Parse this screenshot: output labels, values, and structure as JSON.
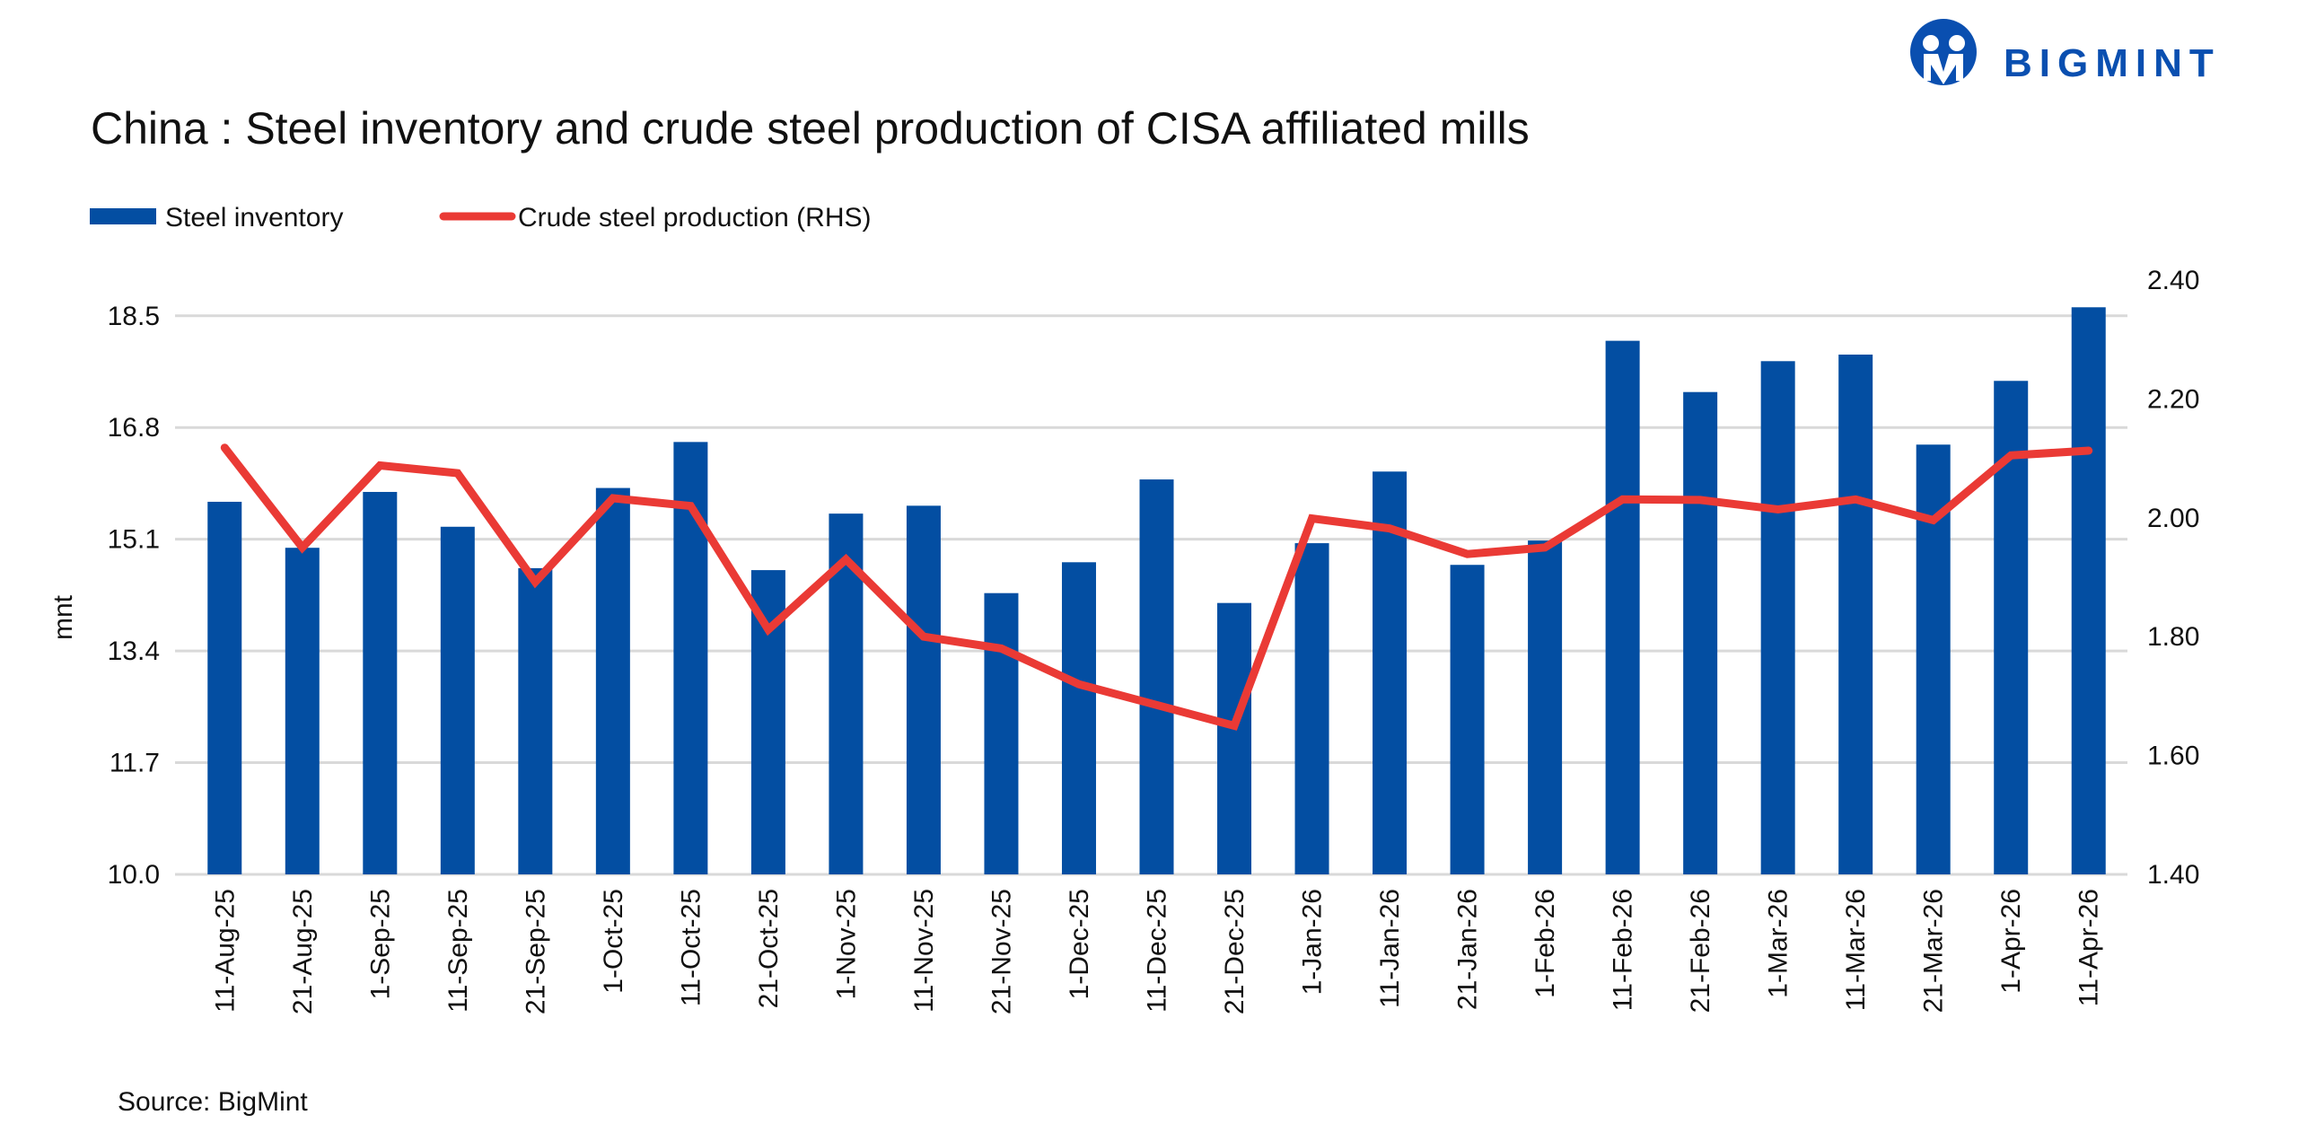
{
  "logo": {
    "text": "BIGMINT",
    "color": "#0a4fb0"
  },
  "source": "Source: BigMint",
  "chart_data": {
    "type": "bar+line",
    "title": "China : Steel inventory and crude steel production of CISA affiliated mills",
    "ylabel": "mnt",
    "ylabel_right": "",
    "ylim": [
      10.0,
      19.04
    ],
    "yticks": [
      "10.0",
      "11.7",
      "13.4",
      "15.1",
      "16.8",
      "18.5"
    ],
    "ylim_right": [
      1.4,
      2.4
    ],
    "yticks_right": [
      "1.40",
      "1.60",
      "1.80",
      "2.00",
      "2.20",
      "2.40"
    ],
    "grid": true,
    "legend_position": "top-left",
    "categories": [
      "11-Aug-25",
      "21-Aug-25",
      "1-Sep-25",
      "11-Sep-25",
      "21-Sep-25",
      "1-Oct-25",
      "11-Oct-25",
      "21-Oct-25",
      "1-Nov-25",
      "11-Nov-25",
      "21-Nov-25",
      "1-Dec-25",
      "11-Dec-25",
      "21-Dec-25",
      "1-Jan-26",
      "11-Jan-26",
      "21-Jan-26",
      "1-Feb-26",
      "11-Feb-26",
      "21-Feb-26",
      "1-Mar-26",
      "11-Mar-26",
      "21-Mar-26",
      "1-Apr-26",
      "11-Apr-26"
    ],
    "series": [
      {
        "name": "Steel inventory",
        "type": "bar",
        "axis": "left",
        "color": "#034ea2",
        "values": [
          15.67,
          14.97,
          15.82,
          15.29,
          14.66,
          15.88,
          16.58,
          14.63,
          15.49,
          15.61,
          14.28,
          14.75,
          16.01,
          14.13,
          15.04,
          16.13,
          14.71,
          15.08,
          18.12,
          17.34,
          17.81,
          17.91,
          16.54,
          17.51,
          18.63
        ]
      },
      {
        "name": "Crude steel production (RHS)",
        "type": "line",
        "axis": "right",
        "color": "#ea3a35",
        "values": [
          2.118,
          1.95,
          2.088,
          2.075,
          1.892,
          2.033,
          2.02,
          1.812,
          1.93,
          1.8,
          1.78,
          1.72,
          1.685,
          1.65,
          1.999,
          1.982,
          1.939,
          1.95,
          2.031,
          2.03,
          2.014,
          2.031,
          1.996,
          2.105,
          2.113
        ]
      }
    ]
  }
}
